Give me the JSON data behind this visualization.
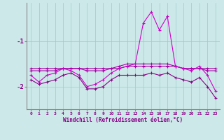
{
  "x": [
    0,
    1,
    2,
    3,
    4,
    5,
    6,
    7,
    8,
    9,
    10,
    11,
    12,
    13,
    14,
    15,
    16,
    17,
    18,
    19,
    20,
    21,
    22,
    23
  ],
  "line_flat": [
    -1.6,
    -1.6,
    -1.6,
    -1.6,
    -1.6,
    -1.6,
    -1.6,
    -1.6,
    -1.6,
    -1.6,
    -1.6,
    -1.6,
    -1.55,
    -1.55,
    -1.55,
    -1.55,
    -1.55,
    -1.55,
    -1.55,
    -1.6,
    -1.6,
    -1.6,
    -1.6,
    -1.6
  ],
  "line_upper": [
    -1.65,
    -1.65,
    -1.65,
    -1.65,
    -1.6,
    -1.6,
    -1.6,
    -1.65,
    -1.65,
    -1.65,
    -1.6,
    -1.55,
    -1.5,
    -1.5,
    -1.5,
    -1.5,
    -1.5,
    -1.5,
    -1.55,
    -1.6,
    -1.6,
    -1.6,
    -1.65,
    -1.65
  ],
  "line_spiky": [
    -1.75,
    -1.9,
    -1.75,
    -1.7,
    -1.6,
    -1.65,
    -1.75,
    -2.0,
    -1.95,
    -1.85,
    -1.7,
    -1.6,
    -1.55,
    -1.5,
    -0.6,
    -0.35,
    -0.75,
    -0.45,
    -1.55,
    -1.6,
    -1.65,
    -1.55,
    -1.75,
    -2.1
  ],
  "line_lower": [
    -1.85,
    -1.95,
    -1.9,
    -1.85,
    -1.75,
    -1.7,
    -1.8,
    -2.05,
    -2.05,
    -2.0,
    -1.85,
    -1.75,
    -1.75,
    -1.75,
    -1.75,
    -1.7,
    -1.75,
    -1.7,
    -1.8,
    -1.85,
    -1.9,
    -1.8,
    -2.0,
    -2.25
  ],
  "bg_color": "#cde8e8",
  "color_flat": "#aa00aa",
  "color_upper": "#aa00aa",
  "color_spiky": "#cc00cc",
  "color_lower": "#880088",
  "grid_color": "#99cccc",
  "xlabel": "Windchill (Refroidissement éolien,°C)",
  "ytick_vals": [
    -2,
    -1
  ],
  "xlim": [
    -0.5,
    23.5
  ],
  "ylim": [
    -2.5,
    -0.15
  ]
}
